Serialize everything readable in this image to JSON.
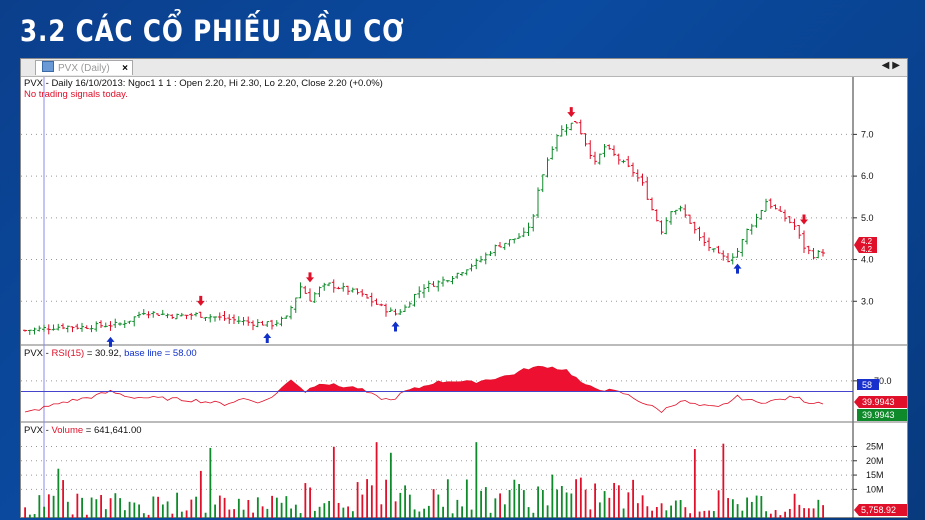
{
  "slide": {
    "title": "3.2  CÁC CỔ PHIẾU ĐẦU CƠ"
  },
  "window": {
    "tab_label": "PVX (Daily)",
    "close_glyph": "×",
    "nav_left": "◀",
    "nav_right": "▶"
  },
  "price_panel": {
    "header": "PVX - Daily 16/10/2013: Ngoc1 1 1 : Open 2.20, Hi 2.30, Lo 2.20, Close 2.20 (+0.0%)",
    "signal_text": "No trading signals today.",
    "badge_values": [
      "4.2",
      "4.2"
    ]
  },
  "rsi_panel": {
    "header_prefix": "PVX - ",
    "header_name": "RSI(15)",
    "header_value": " = 30.92, ",
    "header_base": "base line = 58.00",
    "badge_base": "58",
    "badge_red": "39.9943",
    "badge_green": "39.9943"
  },
  "volume_panel": {
    "header_prefix": "PVX - ",
    "header_name": "Volume",
    "header_value": " = 641,641.00",
    "badge_value": "5,758.92"
  },
  "colors": {
    "up": "#0e8a2a",
    "down": "#e0102a",
    "buy_arrow": "#1030c8",
    "sell_arrow": "#e0102a",
    "rsi_fill": "#ee1030",
    "baseline": "#4444cc"
  },
  "chart_data": [
    {
      "type": "ohlc",
      "title": "PVX - Daily",
      "y_ticks": [
        3.0,
        4.0,
        5.0,
        6.0,
        7.0
      ],
      "ylim": [
        2.0,
        7.8
      ],
      "close_path": [
        [
          0,
          2.3
        ],
        [
          4,
          2.35
        ],
        [
          8,
          2.4
        ],
        [
          12,
          2.38
        ],
        [
          16,
          2.42
        ],
        [
          20,
          2.45
        ],
        [
          22,
          2.55
        ],
        [
          25,
          2.75
        ],
        [
          28,
          2.7
        ],
        [
          32,
          2.65
        ],
        [
          36,
          2.68
        ],
        [
          40,
          2.62
        ],
        [
          44,
          2.55
        ],
        [
          48,
          2.48
        ],
        [
          52,
          2.45
        ],
        [
          55,
          2.6
        ],
        [
          57,
          3.1
        ],
        [
          58,
          3.35
        ],
        [
          60,
          3.05
        ],
        [
          62,
          3.3
        ],
        [
          64,
          3.4
        ],
        [
          67,
          3.3
        ],
        [
          70,
          3.2
        ],
        [
          73,
          3.0
        ],
        [
          76,
          2.8
        ],
        [
          78,
          2.7
        ],
        [
          80,
          2.85
        ],
        [
          82,
          3.15
        ],
        [
          84,
          3.35
        ],
        [
          87,
          3.45
        ],
        [
          90,
          3.6
        ],
        [
          93,
          3.8
        ],
        [
          96,
          4.0
        ],
        [
          99,
          4.3
        ],
        [
          102,
          4.45
        ],
        [
          105,
          4.6
        ],
        [
          107,
          5.0
        ],
        [
          108,
          5.7
        ],
        [
          110,
          6.4
        ],
        [
          112,
          7.0
        ],
        [
          114,
          7.2
        ],
        [
          116,
          7.3
        ],
        [
          118,
          6.8
        ],
        [
          120,
          6.3
        ],
        [
          122,
          6.7
        ],
        [
          124,
          6.5
        ],
        [
          126,
          6.3
        ],
        [
          128,
          6.1
        ],
        [
          130,
          5.8
        ],
        [
          132,
          5.2
        ],
        [
          134,
          4.7
        ],
        [
          136,
          5.2
        ],
        [
          138,
          5.2
        ],
        [
          140,
          4.9
        ],
        [
          142,
          4.5
        ],
        [
          144,
          4.3
        ],
        [
          146,
          4.1
        ],
        [
          148,
          4.0
        ],
        [
          150,
          4.2
        ],
        [
          152,
          4.7
        ],
        [
          154,
          5.0
        ],
        [
          156,
          5.4
        ],
        [
          158,
          5.2
        ],
        [
          160,
          5.0
        ],
        [
          162,
          4.8
        ],
        [
          164,
          4.3
        ],
        [
          166,
          4.1
        ],
        [
          168,
          4.2
        ]
      ],
      "buy_arrows_at": [
        18,
        51,
        78,
        150
      ],
      "sell_arrows_at": [
        37,
        60,
        115,
        164
      ]
    },
    {
      "type": "area",
      "title": "RSI(15)",
      "base_line": 58,
      "y_ticks": [
        70.0
      ],
      "ylim": [
        25,
        90
      ],
      "values_path": [
        [
          0,
          34
        ],
        [
          8,
          46
        ],
        [
          14,
          52
        ],
        [
          18,
          58
        ],
        [
          22,
          52
        ],
        [
          30,
          50
        ],
        [
          36,
          48
        ],
        [
          42,
          44
        ],
        [
          46,
          50
        ],
        [
          50,
          46
        ],
        [
          53,
          56
        ],
        [
          56,
          72
        ],
        [
          59,
          58
        ],
        [
          62,
          68
        ],
        [
          66,
          64
        ],
        [
          70,
          62
        ],
        [
          74,
          52
        ],
        [
          77,
          48
        ],
        [
          80,
          58
        ],
        [
          83,
          62
        ],
        [
          86,
          68
        ],
        [
          90,
          70
        ],
        [
          94,
          68
        ],
        [
          98,
          72
        ],
        [
          102,
          76
        ],
        [
          106,
          84
        ],
        [
          110,
          86
        ],
        [
          114,
          82
        ],
        [
          118,
          64
        ],
        [
          122,
          60
        ],
        [
          126,
          56
        ],
        [
          130,
          46
        ],
        [
          134,
          36
        ],
        [
          138,
          48
        ],
        [
          142,
          42
        ],
        [
          146,
          40
        ],
        [
          150,
          52
        ],
        [
          154,
          46
        ],
        [
          158,
          48
        ],
        [
          162,
          52
        ],
        [
          165,
          46
        ],
        [
          168,
          46
        ]
      ]
    },
    {
      "type": "bar",
      "title": "Volume",
      "y_ticks_labels": [
        "25M",
        "20M",
        "15M",
        "10M"
      ],
      "y_ticks_values": [
        25000000,
        20000000,
        15000000,
        10000000
      ],
      "ylim": [
        0,
        29000000
      ]
    }
  ]
}
